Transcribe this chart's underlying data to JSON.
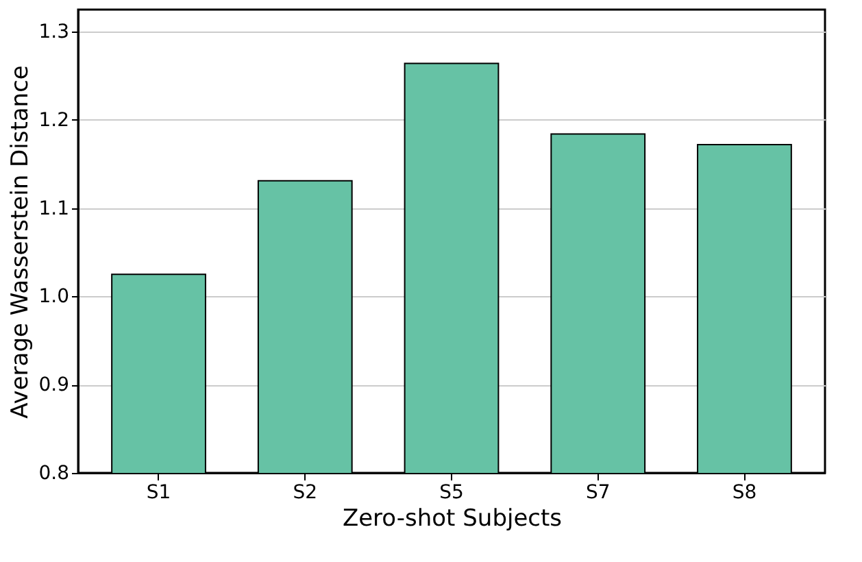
{
  "chart_data": {
    "type": "bar",
    "xlabel": "Zero-shot Subjects",
    "ylabel": "Average Wasserstein Distance",
    "categories": [
      "S1",
      "S2",
      "S5",
      "S7",
      "S8"
    ],
    "values": [
      1.025,
      1.131,
      1.264,
      1.184,
      1.172
    ],
    "color": "#66c2a5",
    "ylim": [
      0.8,
      1.325
    ],
    "yticks": [
      0.8,
      0.9,
      {
        "value": 1,
        "label": "1.0"
      },
      1.1,
      1.2,
      1.3
    ],
    "grid": "y"
  }
}
